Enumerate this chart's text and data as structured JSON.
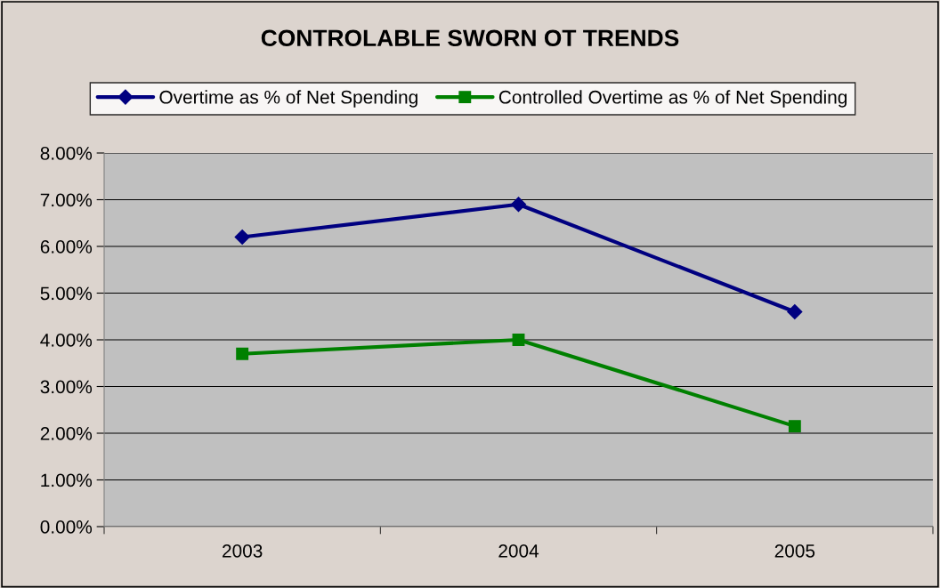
{
  "chart_data": {
    "type": "line",
    "title": "CONTROLABLE SWORN OT TRENDS",
    "categories": [
      "2003",
      "2004",
      "2005"
    ],
    "series": [
      {
        "name": "Overtime as % of Net Spending",
        "color": "#000080",
        "marker": "diamond",
        "values": [
          6.2,
          6.9,
          4.6
        ]
      },
      {
        "name": "Controlled Overtime as % of Net Spending",
        "color": "#008000",
        "marker": "square",
        "values": [
          3.7,
          4.0,
          2.15
        ]
      }
    ],
    "ylim": [
      0,
      8
    ],
    "yticks": [
      {
        "value": 0,
        "label": "0.00%"
      },
      {
        "value": 1,
        "label": "1.00%"
      },
      {
        "value": 2,
        "label": "2.00%"
      },
      {
        "value": 3,
        "label": "3.00%"
      },
      {
        "value": 4,
        "label": "4.00%"
      },
      {
        "value": 5,
        "label": "5.00%"
      },
      {
        "value": 6,
        "label": "6.00%"
      },
      {
        "value": 7,
        "label": "7.00%"
      },
      {
        "value": 8,
        "label": "8.00%"
      }
    ],
    "grid": "y",
    "legend": "top",
    "line_style": "solid"
  }
}
